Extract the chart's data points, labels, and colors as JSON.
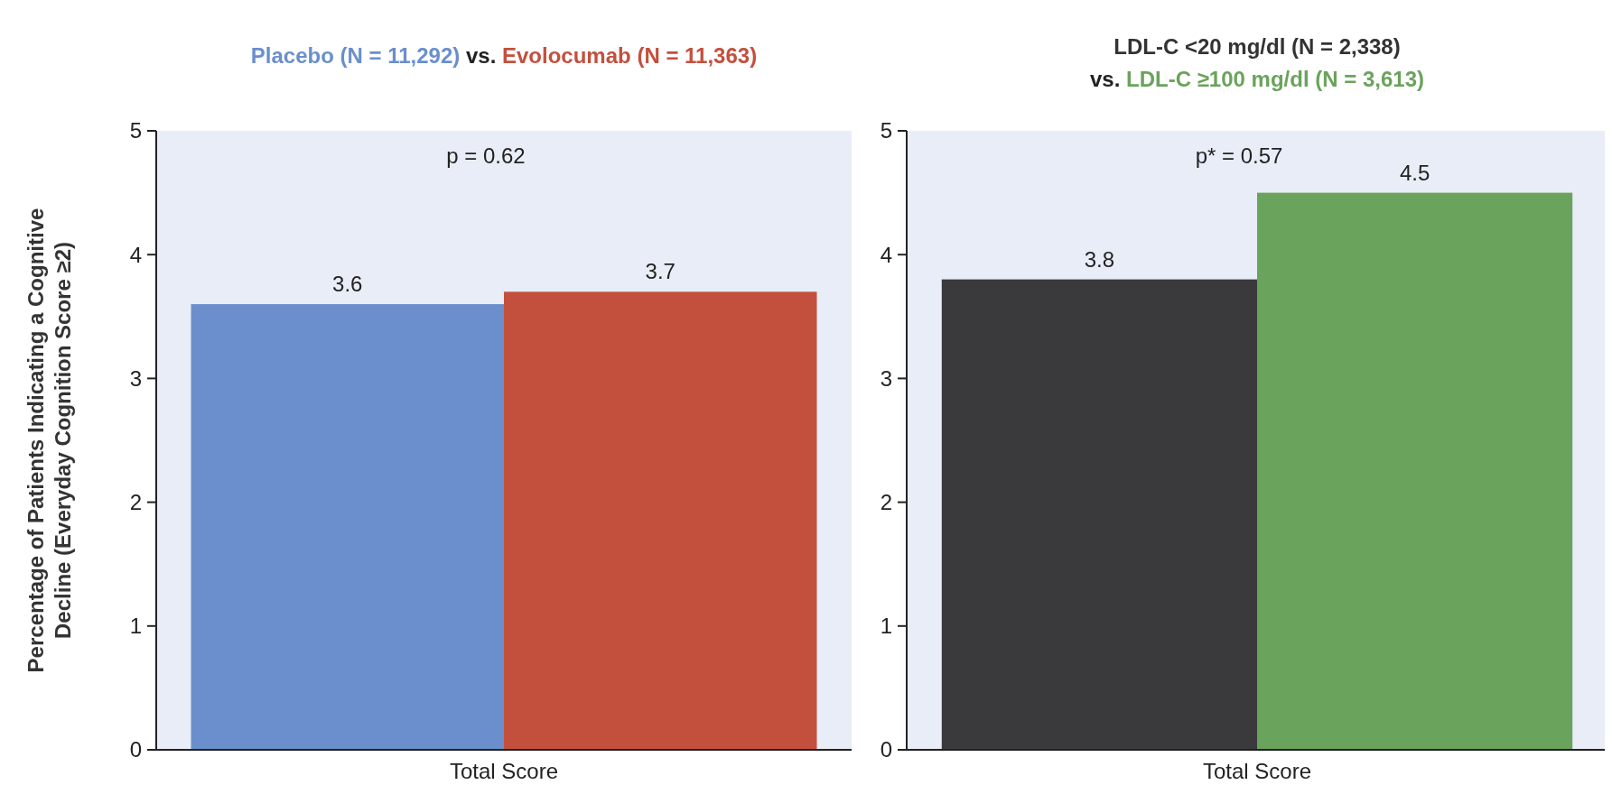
{
  "chart_data": [
    {
      "type": "bar",
      "title": "vs.",
      "ylabel": "Percentage of Patients Indicating a Cognitive Decline (Everyday Cognition Score ≥2)",
      "categories": [
        "Total Score"
      ],
      "series": [
        {
          "name": "Placebo (N = 11,292)",
          "color": "#6a8fcc",
          "values": [
            3.6
          ]
        },
        {
          "name": "Evolocumab (N = 11,363)",
          "color": "#c3503d",
          "values": [
            3.7
          ]
        }
      ],
      "ylim": [
        0,
        5
      ],
      "yticks": [
        0,
        1,
        2,
        3,
        4,
        5
      ],
      "data_labels": true,
      "legend": "top",
      "annotations": [
        "p = 0.62"
      ]
    },
    {
      "type": "bar",
      "title": "vs.",
      "categories": [
        "Total Score"
      ],
      "series": [
        {
          "name": "LDL-C <20 mg/dl (N = 2,338)",
          "color": "#3a3a3c",
          "values": [
            3.8
          ]
        },
        {
          "name": "LDL-C ≥100 mg/dl (N = 3,613)",
          "color": "#6aa35c",
          "values": [
            4.5
          ]
        }
      ],
      "ylim": [
        0,
        5
      ],
      "yticks": [
        0,
        1,
        2,
        3,
        4,
        5
      ],
      "data_labels": true,
      "legend": "top",
      "annotations": [
        "p* = 0.57"
      ]
    }
  ]
}
